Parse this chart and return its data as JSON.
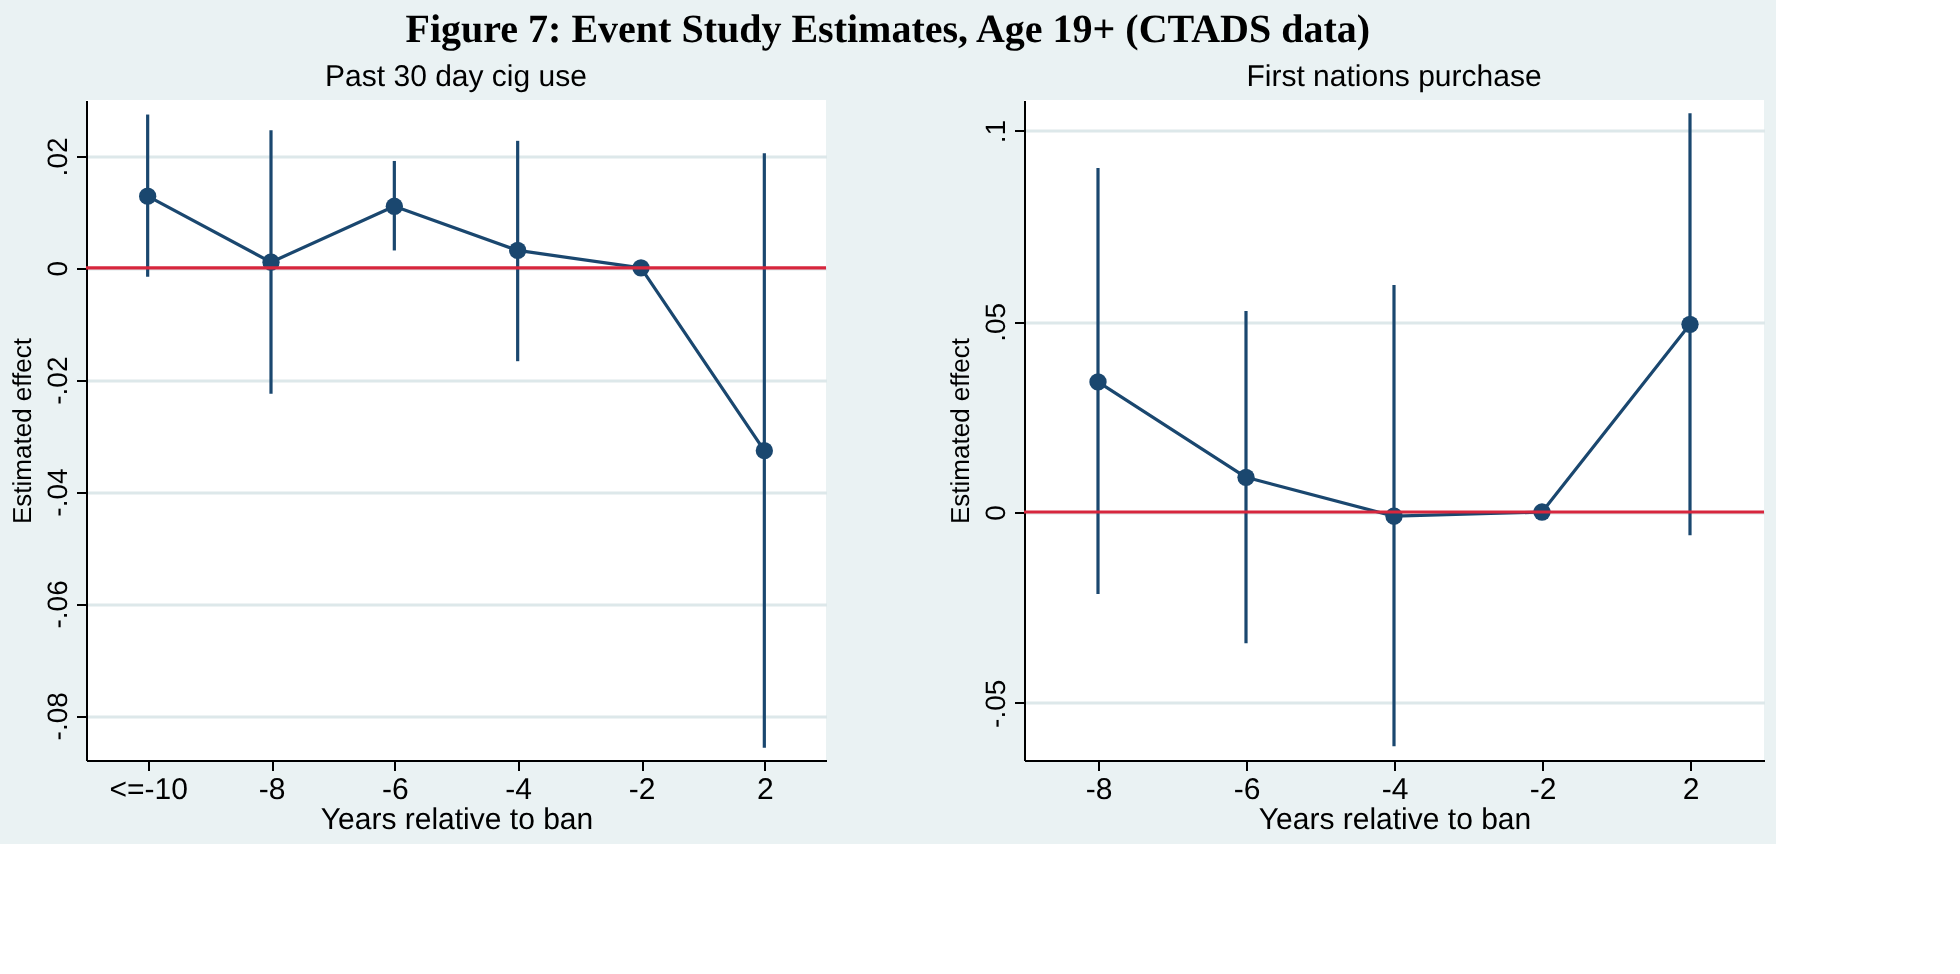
{
  "chart_data": [
    {
      "type": "line",
      "title": "Past 30 day cig use",
      "annotations": [
        "Figure 7: Event Study Estimates, Age 19+ (CTADS data)"
      ],
      "xlabel": "Years relative to ban",
      "ylabel": "Estimated effect",
      "categories": [
        "<=-10",
        "-8",
        "-6",
        "-4",
        "-2",
        "2"
      ],
      "series": [
        {
          "color": "#1a476f",
          "values": [
            0.0128,
            0.001,
            0.011,
            0.0031,
            0.0,
            -0.0327
          ],
          "errors": [
            [
              -0.0016,
              0.0274
            ],
            [
              -0.0225,
              0.0246
            ],
            [
              0.0031,
              0.0191
            ],
            [
              -0.0167,
              0.0227
            ],
            null,
            [
              -0.0858,
              0.0205
            ]
          ]
        }
      ],
      "ylim": [
        -0.088,
        0.03
      ],
      "yticks": [
        {
          "value": -0.08,
          "label": "-.08"
        },
        {
          "value": -0.06,
          "label": "-.06"
        },
        {
          "value": -0.04,
          "label": "-.04"
        },
        {
          "value": -0.02,
          "label": "-.02"
        },
        0,
        {
          "value": 0.02,
          "label": ".02"
        }
      ],
      "ref_lines": [
        {
          "axis": "y",
          "value": 0,
          "color": "#d7263d"
        }
      ],
      "grid": "y",
      "marker": "circle",
      "line_style": "solid"
    },
    {
      "type": "line",
      "title": "First nations purchase",
      "xlabel": "Years relative to ban",
      "ylabel": "Estimated effect",
      "categories": [
        "-8",
        "-6",
        "-4",
        "-2",
        "2"
      ],
      "series": [
        {
          "color": "#1a476f",
          "values": [
            0.0341,
            0.0091,
            -0.0011,
            0.0,
            0.0492
          ],
          "errors": [
            [
              -0.0215,
              0.0902
            ],
            [
              -0.0344,
              0.0527
            ],
            [
              -0.0614,
              0.0595
            ],
            null,
            [
              -0.0061,
              0.1045
            ]
          ]
        }
      ],
      "ylim": [
        -0.065,
        0.108
      ],
      "yticks": [
        {
          "value": -0.05,
          "label": "-.05"
        },
        0,
        {
          "value": 0.05,
          "label": ".05"
        },
        {
          "value": 0.1,
          "label": ".1"
        }
      ],
      "ref_lines": [
        {
          "axis": "y",
          "value": 0,
          "color": "#d7263d"
        }
      ],
      "grid": "y",
      "marker": "circle",
      "line_style": "solid"
    }
  ]
}
